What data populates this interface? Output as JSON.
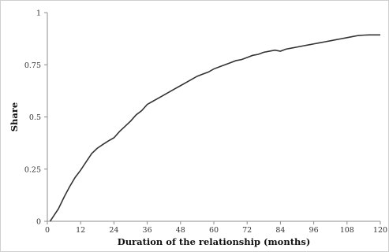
{
  "chart_data": {
    "type": "line",
    "title": "",
    "xlabel": "Duration of the relationship (months)",
    "ylabel": "Share",
    "xlim": [
      0,
      120
    ],
    "ylim": [
      0,
      1
    ],
    "xticks": [
      0,
      12,
      24,
      36,
      48,
      60,
      72,
      84,
      96,
      108,
      120
    ],
    "yticks": [
      0,
      0.25,
      0.5,
      0.75,
      1
    ],
    "ytick_labels": [
      "0",
      "0.25",
      "0.5",
      "0.75",
      "1"
    ],
    "grid": false,
    "legend": "none",
    "line_color": "#333333",
    "series": [
      {
        "x": [
          1,
          2,
          4,
          6,
          8,
          10,
          12,
          14,
          16,
          18,
          20,
          22,
          24,
          26,
          28,
          30,
          32,
          34,
          36,
          38,
          40,
          42,
          44,
          46,
          48,
          50,
          52,
          54,
          56,
          58,
          60,
          62,
          64,
          66,
          68,
          70,
          72,
          74,
          76,
          78,
          80,
          82,
          84,
          86,
          88,
          90,
          92,
          94,
          96,
          98,
          100,
          102,
          104,
          106,
          108,
          110,
          112,
          114,
          116,
          118,
          120
        ],
        "y": [
          0.0,
          0.02,
          0.06,
          0.115,
          0.165,
          0.21,
          0.245,
          0.285,
          0.325,
          0.35,
          0.368,
          0.385,
          0.4,
          0.43,
          0.455,
          0.48,
          0.51,
          0.53,
          0.56,
          0.575,
          0.59,
          0.605,
          0.62,
          0.635,
          0.65,
          0.665,
          0.68,
          0.695,
          0.705,
          0.715,
          0.73,
          0.74,
          0.75,
          0.76,
          0.77,
          0.775,
          0.785,
          0.795,
          0.8,
          0.81,
          0.815,
          0.82,
          0.815,
          0.825,
          0.83,
          0.835,
          0.84,
          0.845,
          0.85,
          0.855,
          0.86,
          0.865,
          0.87,
          0.875,
          0.88,
          0.885,
          0.89,
          0.892,
          0.893,
          0.893,
          0.893
        ]
      }
    ]
  }
}
